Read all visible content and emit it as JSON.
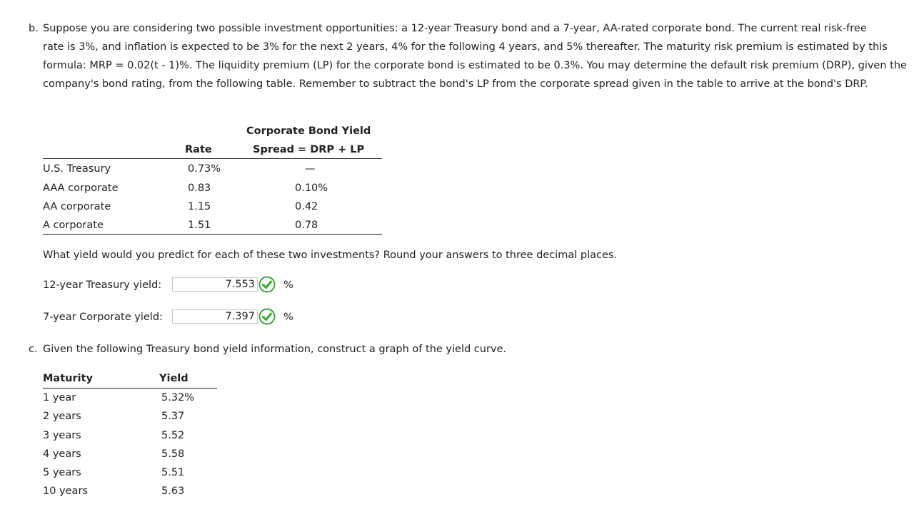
{
  "part_b": {
    "marker": "b.",
    "line1": "Suppose you are considering two possible investment opportunities: a 12-year Treasury bond and a 7-year, AA-rated corporate bond. The current real risk-free",
    "rest": "rate is 3%, and inflation is expected to be 3% for the next 2 years, 4% for the following 4 years, and 5% thereafter. The maturity risk premium is estimated by this formula: MRP = 0.02(t - 1)%. The liquidity premium (LP) for the corporate bond is estimated to be 0.3%. You may determine the default risk premium (DRP), given the company's bond rating, from the following table. Remember to subtract the bond's LP from the corporate spread given in the table to arrive at the bond's DRP."
  },
  "rating_table": {
    "header_rate": "Rate",
    "header_spread_line1": "Corporate Bond Yield",
    "header_spread_line2": "Spread = DRP + LP",
    "rows": [
      {
        "name": "U.S. Treasury",
        "rate": "0.73%",
        "spread": "—"
      },
      {
        "name": "AAA corporate",
        "rate": "0.83",
        "spread": "0.10%"
      },
      {
        "name": "AA corporate",
        "rate": "1.15",
        "spread": "0.42"
      },
      {
        "name": "A corporate",
        "rate": "1.51",
        "spread": "0.78"
      }
    ]
  },
  "question": "What yield would you predict for each of these two investments? Round your answers to three decimal places.",
  "answers": {
    "treasury_label": "12-year Treasury yield:",
    "treasury_value": "7.553",
    "corporate_label": "7-year Corporate yield:",
    "corporate_value": "7.397",
    "unit": "%"
  },
  "part_c": {
    "marker": "c.",
    "text": "Given the following Treasury bond yield information, construct a graph of the yield curve."
  },
  "yield_table": {
    "header_maturity": "Maturity",
    "header_yield": "Yield",
    "rows": [
      {
        "maturity": "1 year",
        "yield": "5.32%"
      },
      {
        "maturity": "2 years",
        "yield": "5.37"
      },
      {
        "maturity": "3 years",
        "yield": "5.52"
      },
      {
        "maturity": "4 years",
        "yield": "5.58"
      },
      {
        "maturity": "5 years",
        "yield": "5.51"
      },
      {
        "maturity": "10 years",
        "yield": "5.63"
      }
    ]
  },
  "colors": {
    "check_green": "#3aa635",
    "text": "#222222",
    "input_border": "#c8c8c8"
  }
}
